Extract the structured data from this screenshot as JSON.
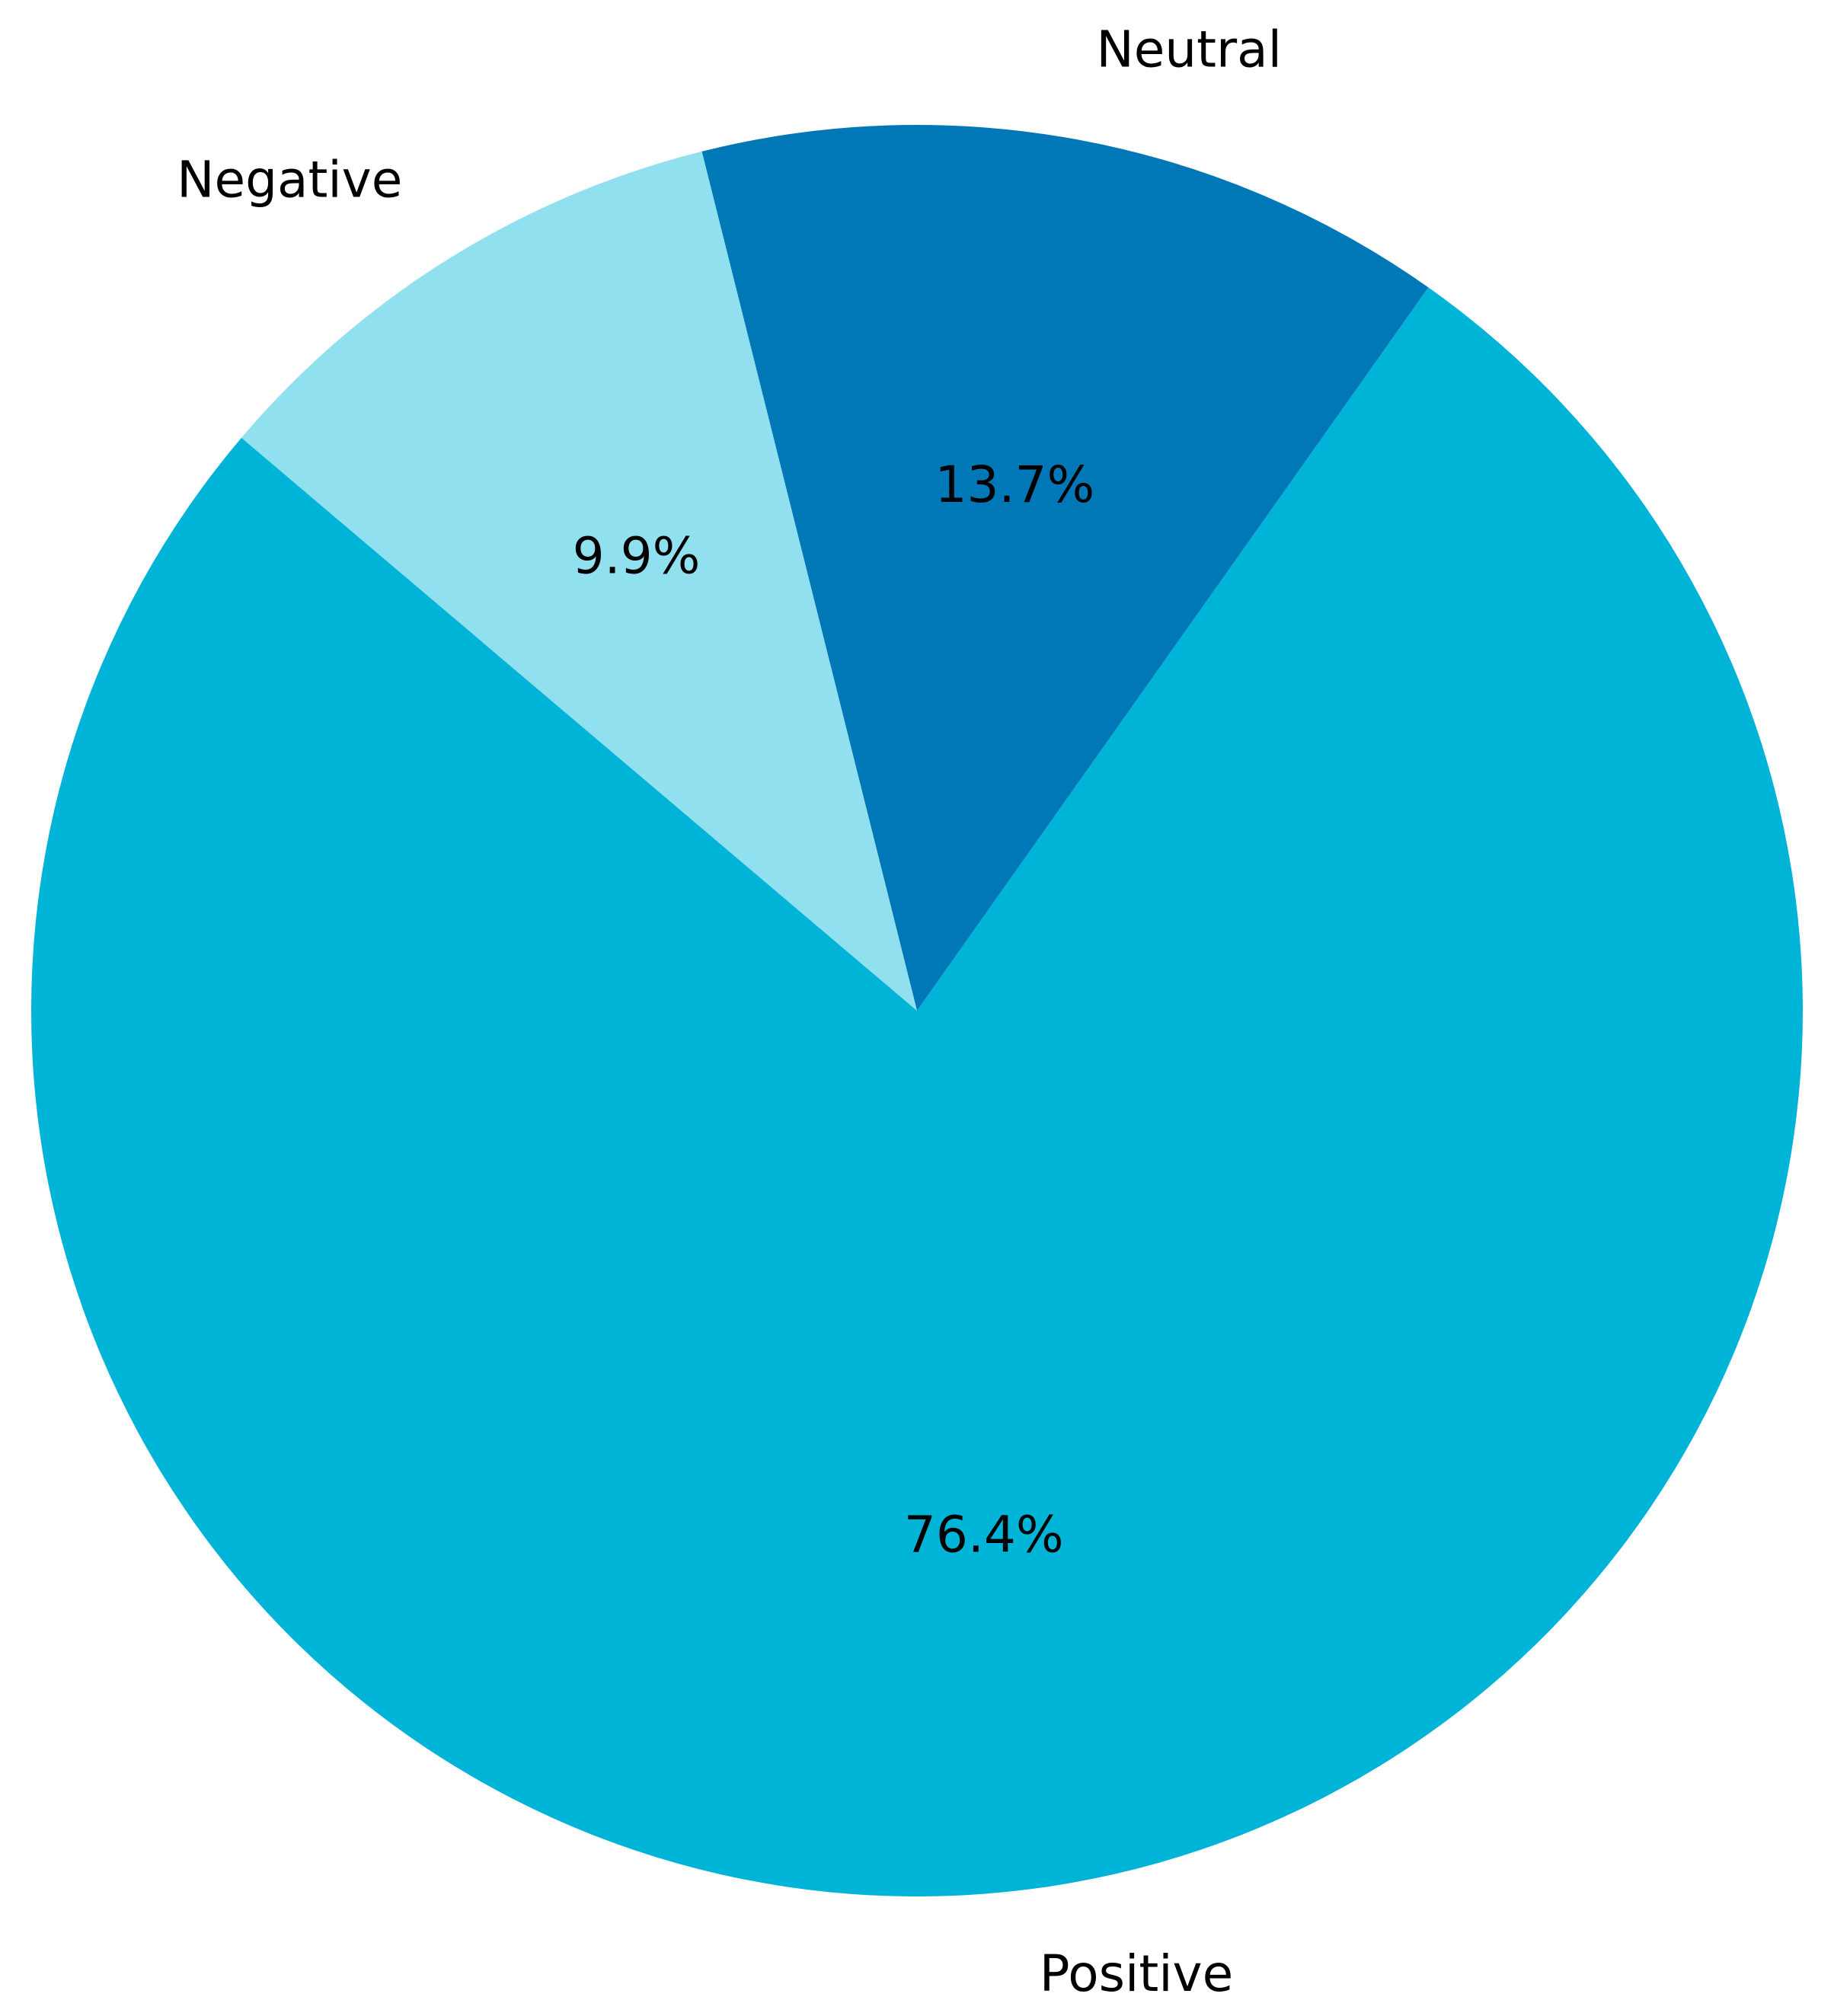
{
  "chart_data": {
    "type": "pie",
    "categories": [
      "Positive",
      "Neutral",
      "Negative"
    ],
    "values": [
      76.4,
      13.7,
      9.9
    ],
    "value_labels": [
      "76.4%",
      "13.7%",
      "9.9%"
    ],
    "colors": [
      "#00b4d8",
      "#0077b6",
      "#90e0ef"
    ]
  }
}
